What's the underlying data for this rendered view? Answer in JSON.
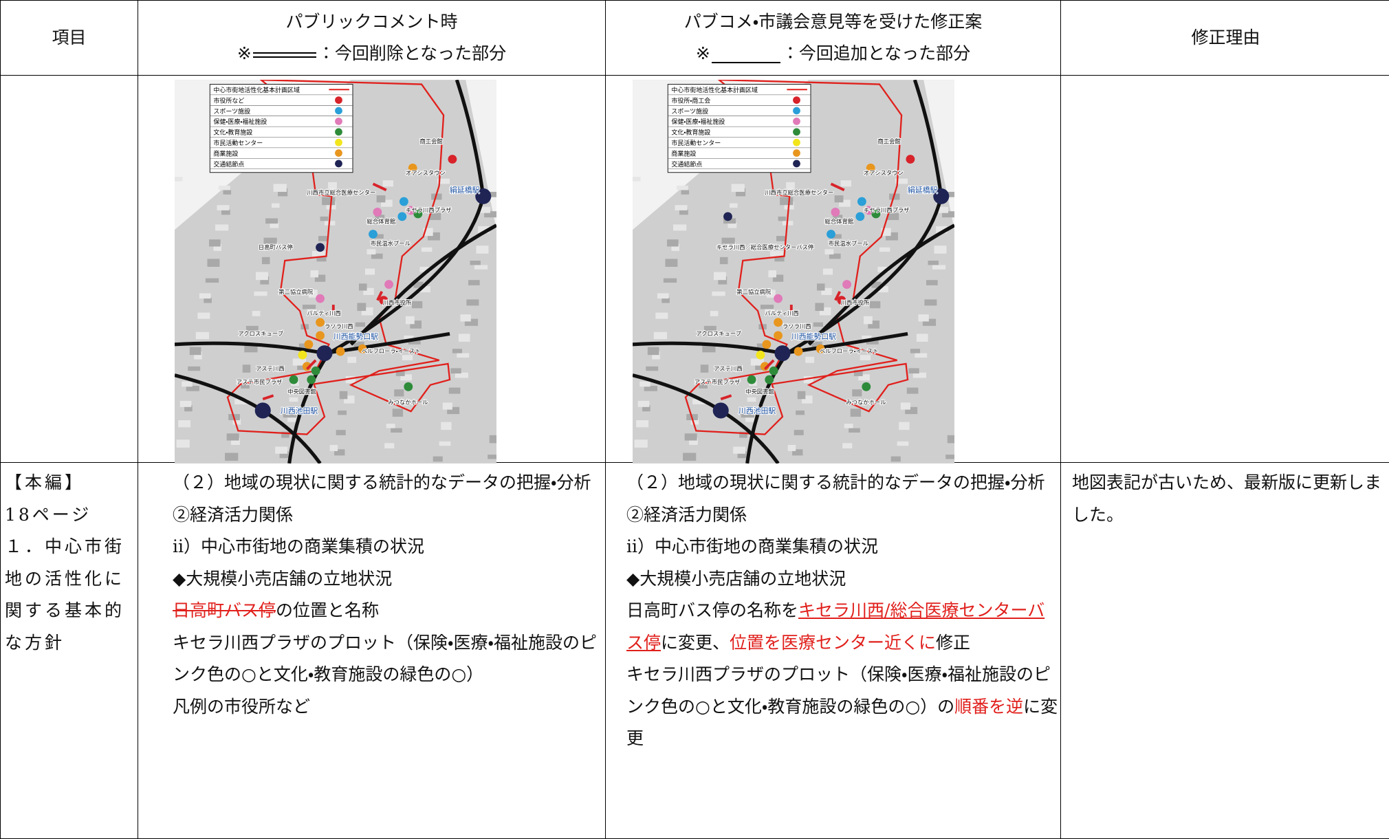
{
  "header": {
    "item": "項目",
    "before": {
      "title": "パブリックコメント時",
      "note_mark": "※",
      "note_text": "：今回削除となった部分"
    },
    "after": {
      "title": "パブコメ・市議会意見等を受けた修正案",
      "note_mark": "※",
      "note_text": "：今回追加となった部分"
    },
    "reason": "修正理由"
  },
  "maps": [
    {
      "legend": [
        {
          "name": "中心市街地活性化基本計画区域",
          "color": "#e0201c",
          "line": true
        },
        {
          "name": "市役所など",
          "color": "#d8232a"
        },
        {
          "name": "スポーツ施設",
          "color": "#2a9fd8"
        },
        {
          "name": "保健・医療・福祉施設",
          "color": "#e07ab8"
        },
        {
          "name": "文化・教育施設",
          "color": "#2e8b3a"
        },
        {
          "name": "市民活動センター",
          "color": "#f2e51c"
        },
        {
          "name": "商業施設",
          "color": "#e8961e"
        },
        {
          "name": "交通結節点",
          "color": "#1f2455"
        }
      ],
      "labels": [
        "商工会館",
        "オアシスタウン",
        "絹延橋駅",
        "川西市立総合医療センター",
        "キセラ川西プラザ",
        "総合体育館",
        "市民温水プール",
        "日高町バス停",
        "第二協立病院",
        "川西市役所",
        "パルティ川西",
        "ラソラ川西",
        "川西能勢口駅",
        "アクロスキューブ",
        "ベルフローラ・イースト",
        "アステ川西",
        "アステ市民プラザ",
        "中央図書館",
        "みつなかホール",
        "川西池田駅"
      ]
    },
    {
      "legend": [
        {
          "name": "中心市街地活性化基本計画区域",
          "color": "#e0201c",
          "line": true
        },
        {
          "name": "市役所・商工会",
          "color": "#d8232a"
        },
        {
          "name": "スポーツ施設",
          "color": "#2a9fd8"
        },
        {
          "name": "保健・医療・福祉施設",
          "color": "#e07ab8"
        },
        {
          "name": "文化・教育施設",
          "color": "#2e8b3a"
        },
        {
          "name": "市民活動センター",
          "color": "#f2e51c"
        },
        {
          "name": "商業施設",
          "color": "#e8961e"
        },
        {
          "name": "交通結節点",
          "color": "#1f2455"
        }
      ],
      "labels": [
        "商工会館",
        "オアシスタウン",
        "絹延橋駅",
        "川西市立総合医療センター",
        "キセラ川西プラザ",
        "総合体育館",
        "市民温水プール",
        "キセラ川西／総合医療センターバス停",
        "第二協立病院",
        "川西市役所",
        "パルティ川西",
        "ラソラ川西",
        "川西能勢口駅",
        "アクロスキューブ",
        "ベルフローラ・イースト",
        "アステ川西",
        "アステ市民プラザ",
        "中央図書館",
        "みつなかホール",
        "川西池田駅"
      ]
    }
  ],
  "row": {
    "item": [
      "【本編】",
      "18ページ",
      "１．中心市街地の活性化に関する基本的な方針"
    ],
    "before": {
      "heading": "（２）地域の現状に関する統計的なデータの把握・分析",
      "l1": "②経済活力関係",
      "l2": "ⅱ）中心市街地の商業集積の状況",
      "l3": "◆大規模小売店舗の立地状況",
      "l4_deleted": "日高町バス停",
      "l4_rest": "の位置と名称",
      "l5": "キセラ川西プラザのプロット（保険・医療・福祉施設のピンク色の○と文化・教育施設の緑色の○）",
      "l6": "凡例の市役所など"
    },
    "after": {
      "heading": "（２）地域の現状に関する統計的なデータの把握・分析",
      "l1": "②経済活力関係",
      "l2": "ⅱ）中心市街地の商業集積の状況",
      "l3": "◆大規模小売店舗の立地状況",
      "l4": {
        "a": "日高町バス停の名称を",
        "b": "キセラ川西/総合医療センターバス停",
        "c": "に変更、",
        "d": "位置を医療センター近くに",
        "e": "修正"
      },
      "l5": {
        "a": "キセラ川西プラザのプロット（保険・医療・福祉施設のピンク色の○と文化・教育施設の緑色の○）の",
        "b": "順番を逆",
        "c": "に変更"
      }
    },
    "reason": "地図表記が古いため、最新版に更新しました。"
  }
}
